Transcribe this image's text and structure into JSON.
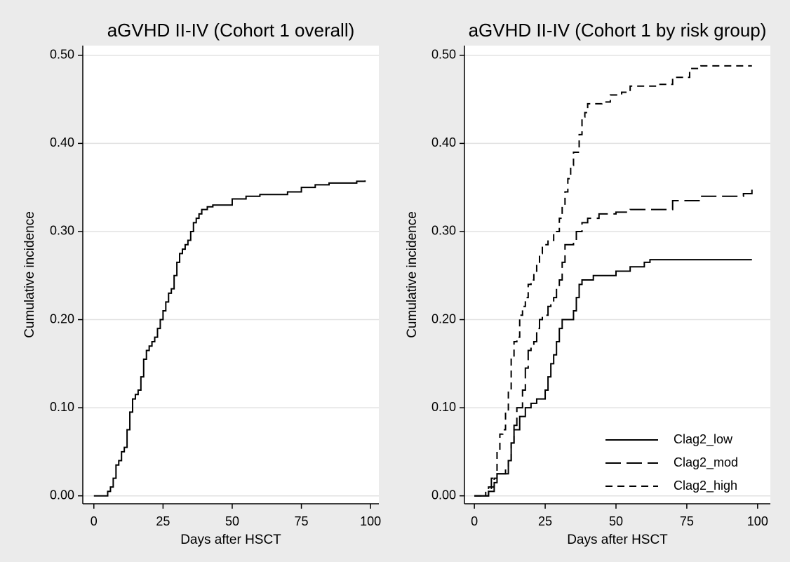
{
  "chart_data": [
    {
      "type": "step",
      "title": "aGVHD II-IV (Cohort 1 overall)",
      "xlabel": "Days after HSCT",
      "ylabel": "Cumulative incidence",
      "xlim": [
        -4,
        103
      ],
      "ylim": [
        -0.009,
        0.511
      ],
      "xticks": [
        0,
        25,
        50,
        75,
        100
      ],
      "yticks": [
        {
          "value": 0,
          "label": "0.00"
        },
        {
          "value": 0.1,
          "label": "0.10"
        },
        {
          "value": 0.2,
          "label": "0.20"
        },
        {
          "value": 0.3,
          "label": "0.30"
        },
        {
          "value": 0.4,
          "label": "0.40"
        },
        {
          "value": 0.5,
          "label": "0.50"
        }
      ],
      "grid": true,
      "series": [
        {
          "color": "#000000",
          "dash": "solid",
          "x": [
            0,
            3,
            5,
            6,
            7,
            8,
            9,
            10,
            11,
            12,
            13,
            14,
            15,
            16,
            17,
            18,
            19,
            20,
            21,
            22,
            23,
            24,
            25,
            26,
            27,
            28,
            29,
            30,
            31,
            32,
            33,
            34,
            35,
            36,
            37,
            38,
            39,
            41,
            43,
            50,
            55,
            60,
            70,
            75,
            80,
            85,
            95,
            98
          ],
          "values": [
            0,
            0,
            0.005,
            0.01,
            0.02,
            0.035,
            0.04,
            0.05,
            0.055,
            0.075,
            0.095,
            0.11,
            0.115,
            0.12,
            0.135,
            0.155,
            0.165,
            0.17,
            0.175,
            0.18,
            0.19,
            0.2,
            0.21,
            0.22,
            0.23,
            0.235,
            0.25,
            0.265,
            0.275,
            0.28,
            0.285,
            0.29,
            0.3,
            0.31,
            0.315,
            0.32,
            0.325,
            0.328,
            0.33,
            0.337,
            0.34,
            0.342,
            0.345,
            0.35,
            0.353,
            0.355,
            0.357,
            0.358
          ]
        }
      ]
    },
    {
      "type": "step",
      "title": "aGVHD II-IV (Cohort 1 by risk group)",
      "xlabel": "Days after HSCT",
      "ylabel": "Cumulative incidence",
      "xlim": [
        -3.5,
        104.5
      ],
      "ylim": [
        -0.009,
        0.511
      ],
      "xticks": [
        0,
        25,
        50,
        75,
        100
      ],
      "yticks": [
        {
          "value": 0,
          "label": "0.00"
        },
        {
          "value": 0.1,
          "label": "0.10"
        },
        {
          "value": 0.2,
          "label": "0.20"
        },
        {
          "value": 0.3,
          "label": "0.30"
        },
        {
          "value": 0.4,
          "label": "0.40"
        },
        {
          "value": 0.5,
          "label": "0.50"
        }
      ],
      "grid": true,
      "legend": "lower right",
      "series": [
        {
          "name": "Clag2_low",
          "color": "#000000",
          "dash": "solid",
          "x": [
            0,
            5,
            7,
            8,
            12,
            13,
            14,
            16,
            18,
            20,
            22,
            25,
            26,
            27,
            28,
            29,
            30,
            31,
            35,
            36,
            37,
            38,
            42,
            50,
            55,
            60,
            62,
            98
          ],
          "values": [
            0,
            0.005,
            0.015,
            0.025,
            0.04,
            0.06,
            0.075,
            0.09,
            0.1,
            0.105,
            0.11,
            0.12,
            0.135,
            0.15,
            0.16,
            0.175,
            0.19,
            0.2,
            0.21,
            0.225,
            0.24,
            0.245,
            0.25,
            0.255,
            0.26,
            0.265,
            0.268,
            0.268
          ]
        },
        {
          "name": "Clag2_mod",
          "color": "#000000",
          "dash": "long",
          "x": [
            0,
            4,
            5,
            6,
            8,
            11,
            12,
            13,
            14,
            15,
            17,
            18,
            19,
            20,
            21,
            22,
            23,
            24,
            26,
            27,
            28,
            29,
            30,
            31,
            32,
            35,
            36,
            38,
            40,
            44,
            50,
            55,
            70,
            80,
            95,
            98
          ],
          "values": [
            0,
            0.005,
            0.01,
            0.02,
            0.025,
            0.03,
            0.04,
            0.06,
            0.08,
            0.1,
            0.12,
            0.145,
            0.165,
            0.17,
            0.175,
            0.19,
            0.2,
            0.205,
            0.215,
            0.22,
            0.225,
            0.235,
            0.245,
            0.265,
            0.285,
            0.29,
            0.3,
            0.31,
            0.315,
            0.32,
            0.322,
            0.325,
            0.335,
            0.34,
            0.343,
            0.348
          ]
        },
        {
          "name": "Clag2_high",
          "color": "#000000",
          "dash": "short",
          "x": [
            0,
            5,
            6,
            7,
            8,
            9,
            10,
            11,
            12,
            13,
            14,
            15,
            16,
            17,
            18,
            19,
            20,
            21,
            22,
            23,
            24,
            26,
            28,
            30,
            31,
            32,
            33,
            34,
            35,
            37,
            38,
            39,
            40,
            45,
            48,
            52,
            55,
            65,
            70,
            76,
            80,
            98
          ],
          "values": [
            0,
            0.005,
            0.01,
            0.02,
            0.05,
            0.07,
            0.075,
            0.095,
            0.12,
            0.155,
            0.175,
            0.18,
            0.205,
            0.215,
            0.225,
            0.24,
            0.245,
            0.255,
            0.265,
            0.275,
            0.285,
            0.29,
            0.3,
            0.315,
            0.33,
            0.345,
            0.36,
            0.375,
            0.39,
            0.41,
            0.43,
            0.435,
            0.445,
            0.447,
            0.455,
            0.458,
            0.465,
            0.467,
            0.475,
            0.485,
            0.488,
            0.488
          ]
        }
      ]
    }
  ]
}
